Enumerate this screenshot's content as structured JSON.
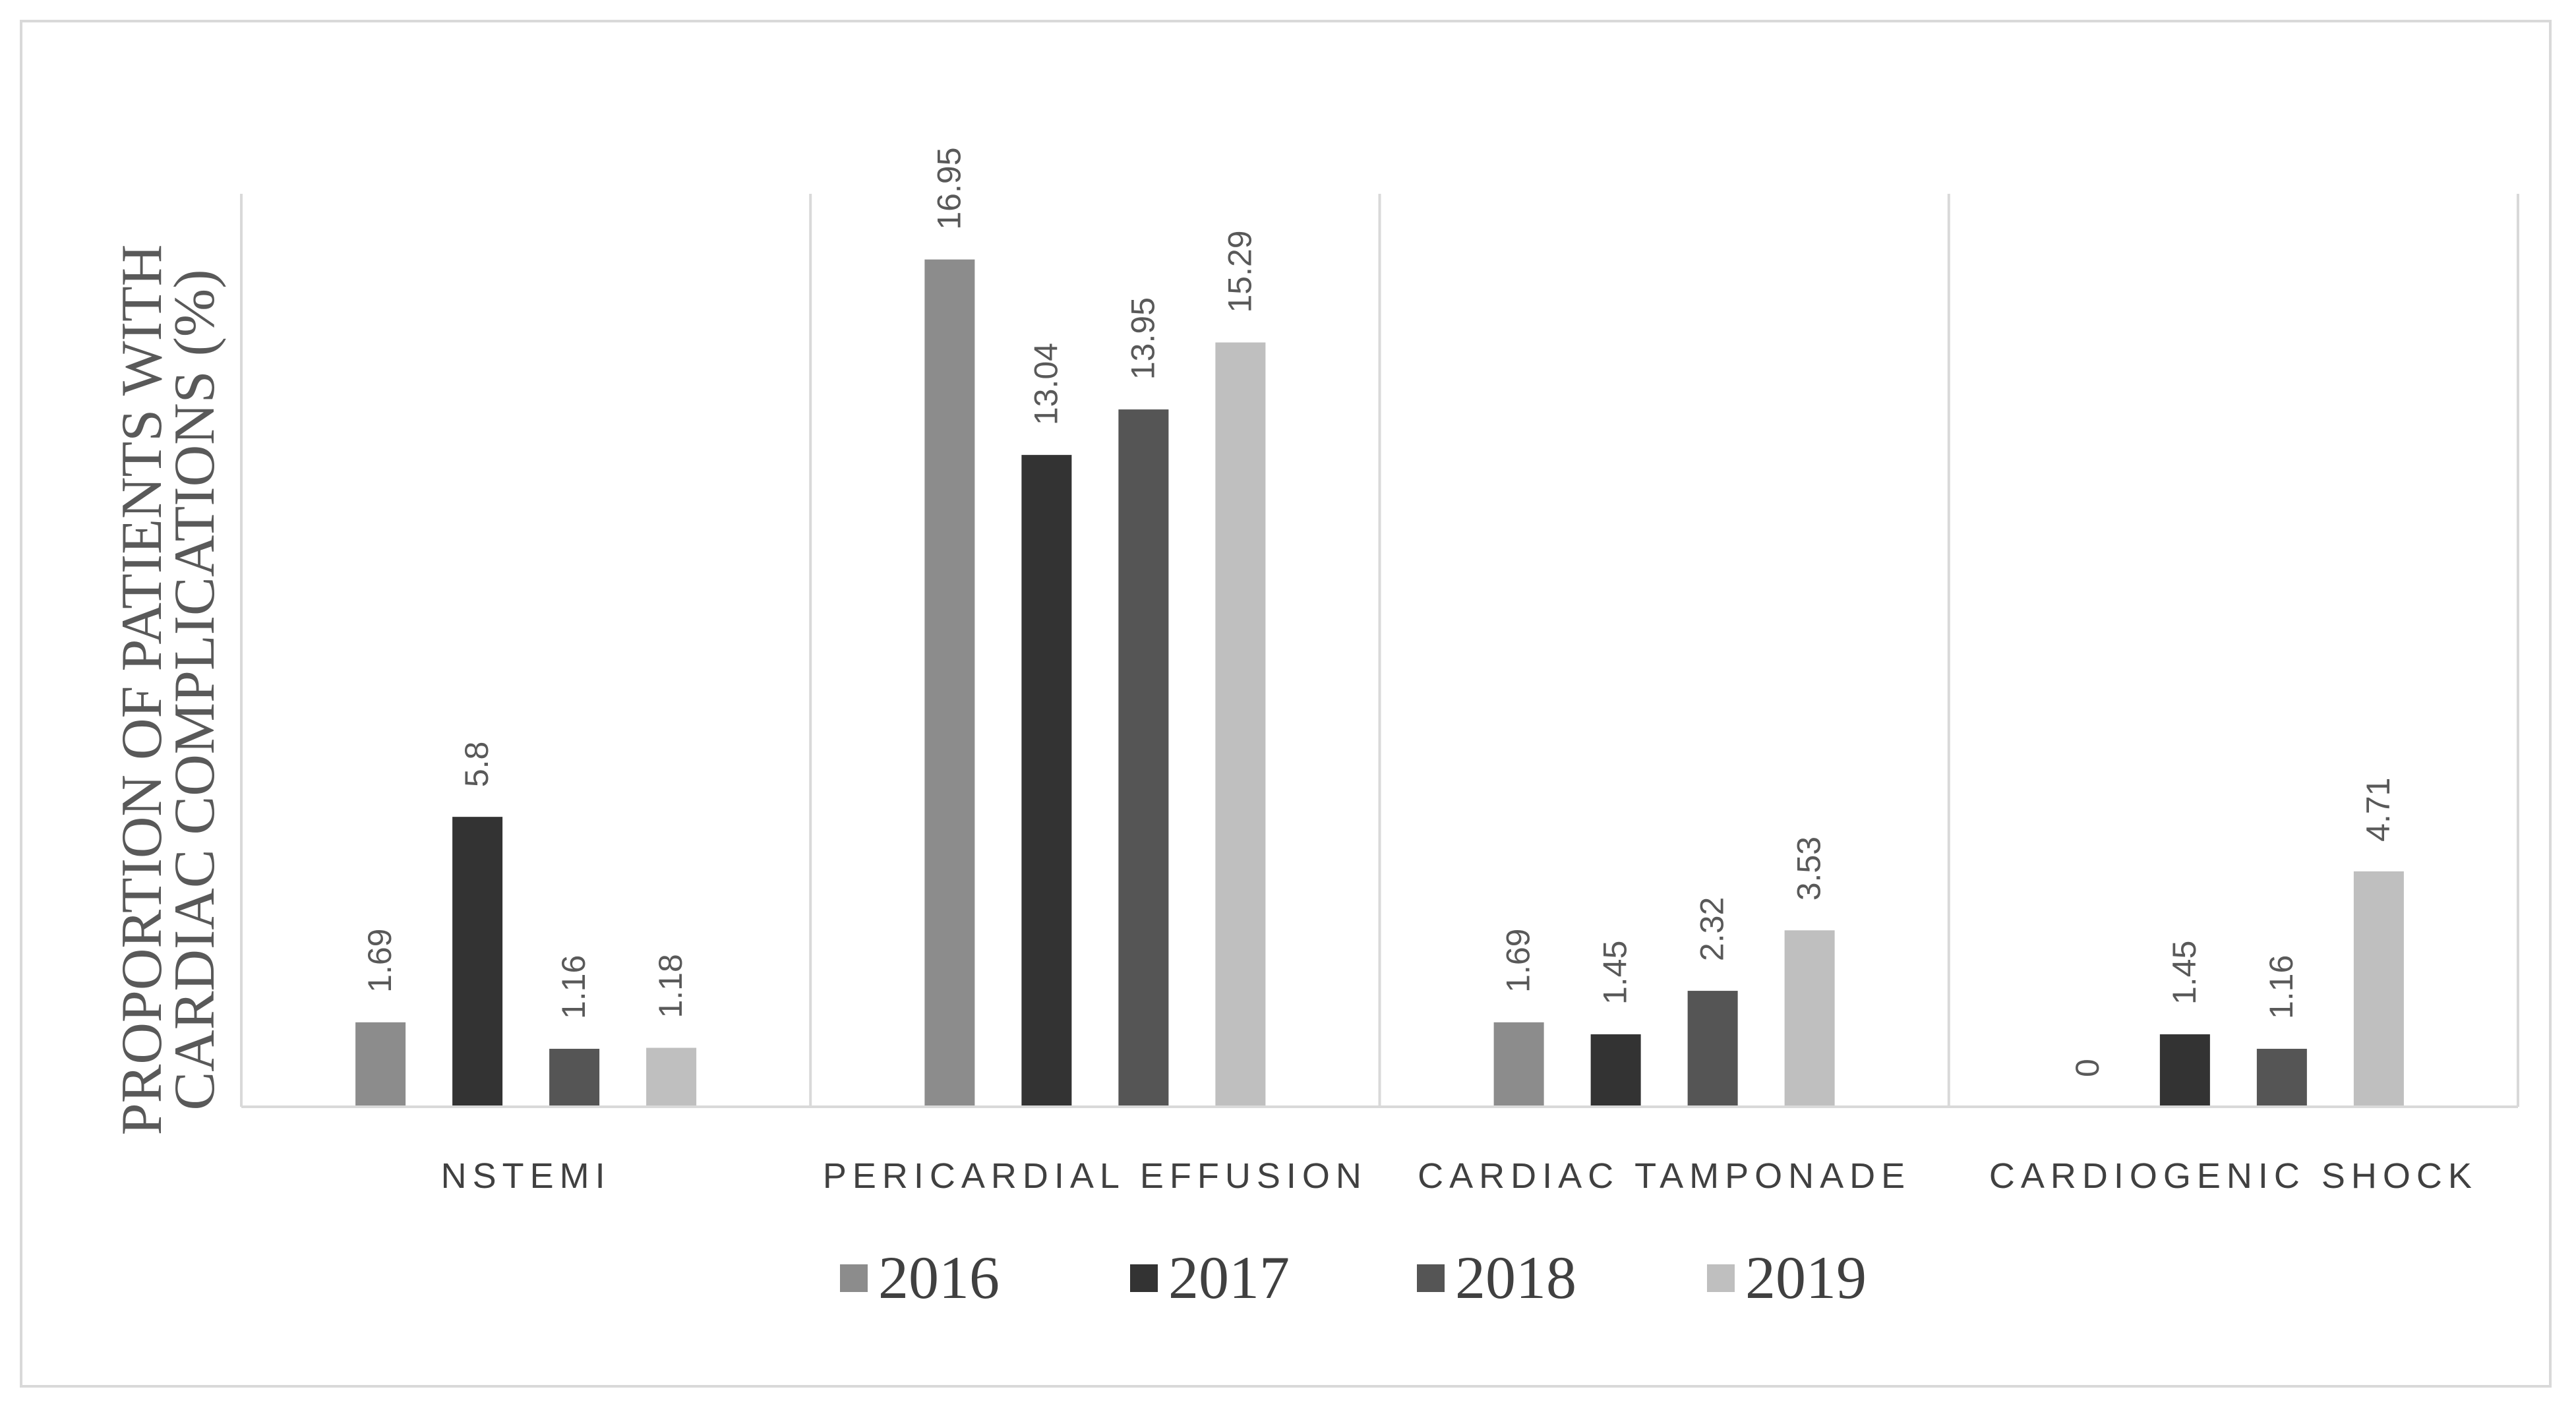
{
  "chart_data": {
    "type": "bar",
    "ylabel_lines": [
      "PROPORTION OF PATIENTS WITH",
      "CARDIAC COMPLICATIONS (%)"
    ],
    "categories": [
      "NSTEMI",
      "PERICARDIAL EFFUSION",
      "CARDIAC TAMPONADE",
      "CARDIOGENIC SHOCK"
    ],
    "series": [
      {
        "name": "2016",
        "color": "#8c8c8c",
        "values": [
          1.69,
          16.95,
          1.69,
          0
        ]
      },
      {
        "name": "2017",
        "color": "#333333",
        "values": [
          5.8,
          13.04,
          1.45,
          1.45
        ]
      },
      {
        "name": "2018",
        "color": "#555555",
        "values": [
          1.16,
          13.95,
          2.32,
          1.16
        ]
      },
      {
        "name": "2019",
        "color": "#bfbfbf",
        "values": [
          1.18,
          15.29,
          3.53,
          4.71
        ]
      }
    ],
    "value_labels": [
      [
        "1.69",
        "16.95",
        "1.69",
        "0"
      ],
      [
        "5.8",
        "13.04",
        "1.45",
        "1.45"
      ],
      [
        "1.16",
        "13.95",
        "2.32",
        "1.16"
      ],
      [
        "1.18",
        "15.29",
        "3.53",
        "4.71"
      ]
    ],
    "ylim": [
      0,
      18
    ],
    "grid": "vertical category separators",
    "legend": "bottom",
    "data_label_rotation": "vertical"
  }
}
